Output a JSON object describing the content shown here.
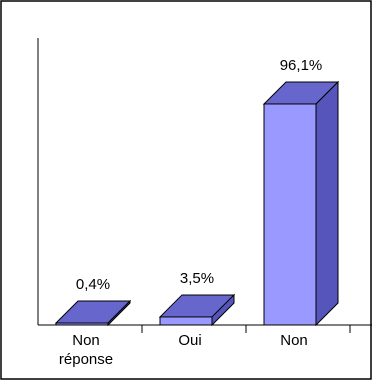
{
  "chart_data": {
    "type": "bar",
    "categories": [
      "Non réponse",
      "Oui",
      "Non"
    ],
    "category_lines": [
      [
        "Non",
        "réponse"
      ],
      [
        "Oui"
      ],
      [
        "Non"
      ]
    ],
    "values": [
      0.4,
      3.5,
      96.1
    ],
    "data_labels": [
      "0,4%",
      "3,5%",
      "96,1%"
    ],
    "ylim": [
      0,
      100
    ],
    "grid": false,
    "style": "3d",
    "colors": {
      "front": "#9999ff",
      "top": "#6666cc",
      "side": "#5555bb",
      "edge": "#000000",
      "frame": "#000000"
    }
  }
}
